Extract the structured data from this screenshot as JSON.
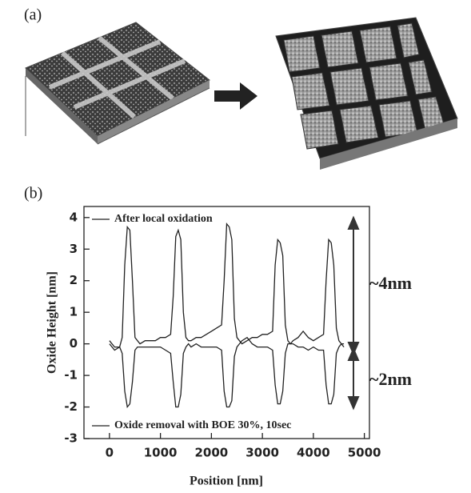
{
  "panel_labels": [
    "(a)",
    "(b)"
  ],
  "chart_data": {
    "type": "line",
    "x_label": "Position [nm]",
    "y_label": "Oxide Height [nm]",
    "annotations": [
      "~4nm",
      "~2nm"
    ],
    "x": [
      0,
      100,
      200,
      250,
      300,
      350,
      400,
      450,
      500,
      550,
      600,
      700,
      800,
      900,
      1000,
      1100,
      1200,
      1250,
      1300,
      1350,
      1400,
      1450,
      1500,
      1550,
      1600,
      1700,
      1800,
      1900,
      2000,
      2100,
      2200,
      2250,
      2300,
      2350,
      2400,
      2450,
      2500,
      2550,
      2600,
      2700,
      2800,
      2900,
      3000,
      3100,
      3200,
      3250,
      3300,
      3350,
      3400,
      3450,
      3500,
      3550,
      3600,
      3700,
      3800,
      3900,
      4000,
      4100,
      4200,
      4250,
      4300,
      4350,
      4400,
      4450,
      4500,
      4550,
      4600
    ],
    "series": [
      {
        "name": "After local oxidation",
        "color": "#222222",
        "values": [
          0.1,
          -0.1,
          -0.1,
          0.2,
          2.5,
          3.7,
          3.6,
          2.0,
          0.2,
          0.1,
          0.0,
          0.1,
          0.1,
          0.1,
          0.2,
          0.2,
          0.3,
          1.5,
          3.4,
          3.6,
          3.3,
          1.0,
          0.2,
          0.1,
          0.1,
          0.2,
          0.2,
          0.3,
          0.4,
          0.5,
          0.6,
          2.0,
          3.8,
          3.7,
          3.3,
          0.8,
          0.2,
          0.1,
          0.0,
          0.1,
          0.2,
          0.2,
          0.3,
          0.3,
          0.4,
          2.5,
          3.3,
          3.2,
          2.8,
          0.6,
          0.1,
          0.0,
          0.1,
          0.2,
          0.4,
          0.2,
          0.1,
          0.2,
          0.3,
          2.0,
          3.3,
          3.2,
          2.5,
          0.5,
          0.1,
          0.0,
          0.0
        ]
      },
      {
        "name": "Oxide removal with BOE 30%, 10sec",
        "color": "#222222",
        "values": [
          0.0,
          -0.2,
          -0.1,
          -0.3,
          -1.5,
          -2.0,
          -1.9,
          -1.2,
          -0.2,
          -0.1,
          -0.1,
          -0.1,
          -0.1,
          -0.1,
          -0.1,
          -0.2,
          -0.3,
          -1.2,
          -2.0,
          -2.0,
          -1.6,
          -0.3,
          -0.1,
          0.0,
          -0.1,
          0.0,
          -0.1,
          -0.1,
          -0.1,
          -0.1,
          -0.2,
          -1.5,
          -2.0,
          -2.0,
          -1.8,
          -0.4,
          -0.1,
          0.0,
          0.1,
          0.2,
          0.0,
          -0.1,
          -0.1,
          -0.1,
          -0.2,
          -1.3,
          -1.9,
          -1.9,
          -1.5,
          -0.3,
          0.0,
          0.0,
          0.0,
          -0.1,
          -0.1,
          -0.2,
          -0.1,
          -0.2,
          -0.2,
          -1.3,
          -1.9,
          -1.9,
          -1.6,
          -0.3,
          -0.1,
          0.0,
          -0.1
        ]
      }
    ],
    "xlim": [
      -500,
      5100
    ],
    "xticks": [
      0,
      1000,
      2000,
      3000,
      4000,
      5000
    ],
    "ylim": [
      -3,
      4.35
    ],
    "yticks": [
      -3,
      -2,
      -1,
      0,
      1,
      2,
      3,
      4
    ]
  }
}
